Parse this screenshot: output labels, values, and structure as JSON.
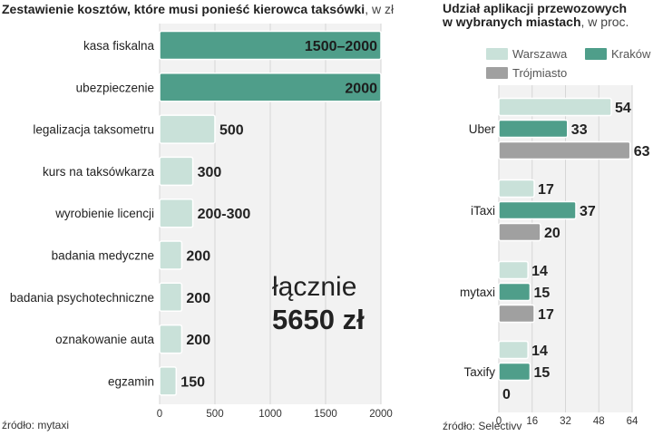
{
  "colors": {
    "teal": "#4f9e8a",
    "light_teal": "#c9e1d9",
    "gray": "#a0a0a0",
    "panel": "#f2f2f2",
    "grid": "#d6d6d6"
  },
  "left": {
    "title_bold": "Zestawienie kosztów, które musi ponieść kierowca taksówki",
    "title_unit": ", w zł",
    "source": "źródło: mytaxi",
    "total_line1": "łącznie",
    "total_line2": "5650 zł"
  },
  "right": {
    "title_line1": "Udział aplikacji przewozowych",
    "title_line2": "w wybranych miastach",
    "title_unit": ", w proc.",
    "source": "źródło: Selectivv",
    "legend": [
      "Warszawa",
      "Kraków",
      "Trójmiasto"
    ]
  },
  "chart_data": [
    {
      "type": "bar",
      "orientation": "horizontal",
      "title": "Zestawienie kosztów, które musi ponieść kierowca taksówki, w zł",
      "categories": [
        "kasa fiskalna",
        "ubezpieczenie",
        "legalizacja taksometru",
        "kurs na taksówkarza",
        "wyrobienie licencji",
        "badania medyczne",
        "badania psychotechniczne",
        "oznakowanie auta",
        "egzamin"
      ],
      "values": [
        2000,
        2000,
        500,
        300,
        300,
        200,
        200,
        200,
        150
      ],
      "value_labels": [
        "1500–2000",
        "2000",
        "500",
        "300",
        "200-300",
        "200",
        "200",
        "200",
        "150"
      ],
      "highlight": [
        true,
        true,
        false,
        false,
        false,
        false,
        false,
        false,
        false
      ],
      "xlim": [
        0,
        2000
      ],
      "xticks": [
        0,
        500,
        1000,
        1500,
        2000
      ],
      "grid": true
    },
    {
      "type": "bar",
      "orientation": "horizontal",
      "title": "Udział aplikacji przewozowych w wybranych miastach, w proc.",
      "categories": [
        "Uber",
        "iTaxi",
        "mytaxi",
        "Taxify"
      ],
      "series": [
        {
          "name": "Warszawa",
          "values": [
            54,
            17,
            14,
            14
          ]
        },
        {
          "name": "Kraków",
          "values": [
            33,
            37,
            15,
            15
          ]
        },
        {
          "name": "Trójmiasto",
          "values": [
            63,
            20,
            17,
            0
          ]
        }
      ],
      "xlim": [
        0,
        64
      ],
      "xticks": [
        0,
        16,
        32,
        48,
        64
      ],
      "legend_position": "top",
      "grid": true
    }
  ]
}
